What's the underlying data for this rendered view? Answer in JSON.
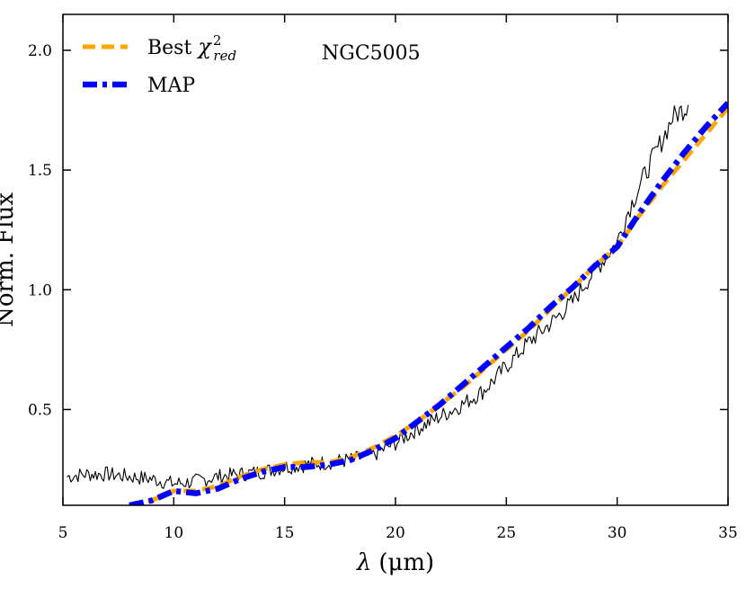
{
  "chart_data": {
    "type": "line",
    "title": "",
    "annotation": "NGC5005",
    "xlabel_symbol": "λ",
    "xlabel_unit": "(μm)",
    "ylabel": "Norm. Flux",
    "xlim": [
      5,
      35
    ],
    "ylim": [
      0.1,
      2.15
    ],
    "x_ticks": [
      5,
      10,
      15,
      20,
      25,
      30,
      35
    ],
    "x_tick_labels": [
      "5",
      "10",
      "15",
      "20",
      "25",
      "30",
      "35"
    ],
    "y_ticks": [
      0.5,
      1.0,
      1.5,
      2.0
    ],
    "y_tick_labels": [
      "0.5",
      "1.0",
      "1.5",
      "2.0"
    ],
    "grid": false,
    "legend_position": "top-left",
    "legend": [
      {
        "series": "best_chi2",
        "label": "Best",
        "math_base": "χ",
        "math_sup": "2",
        "math_sub": "red"
      },
      {
        "series": "map",
        "label": "MAP"
      }
    ],
    "series": [
      {
        "name": "observed",
        "color": "#000000",
        "style": "solid",
        "noisy": true,
        "x": [
          5.2,
          6,
          7,
          8,
          9,
          10,
          11,
          12,
          13,
          14,
          15,
          16,
          17,
          18,
          19,
          20,
          21,
          22,
          23,
          24,
          25,
          26,
          27,
          28,
          28.5,
          29,
          29.5,
          30,
          30.5,
          31,
          31.5,
          32,
          32.5,
          33.2
        ],
        "y": [
          0.22,
          0.23,
          0.23,
          0.22,
          0.21,
          0.19,
          0.2,
          0.22,
          0.23,
          0.24,
          0.26,
          0.27,
          0.28,
          0.29,
          0.31,
          0.36,
          0.42,
          0.47,
          0.52,
          0.58,
          0.68,
          0.78,
          0.86,
          0.95,
          1.02,
          1.08,
          1.14,
          1.2,
          1.33,
          1.43,
          1.53,
          1.62,
          1.72,
          1.77
        ]
      },
      {
        "name": "best_chi2",
        "label": "Best χ²_red",
        "color": "#FFA500",
        "style": "dashed",
        "x": [
          8,
          9,
          10,
          11,
          12,
          13,
          14,
          15,
          16,
          17,
          18,
          19,
          20,
          21,
          22,
          23,
          24,
          25,
          26,
          27,
          28,
          29,
          30,
          31,
          32,
          33,
          34,
          35
        ],
        "y": [
          0.1,
          0.12,
          0.16,
          0.16,
          0.18,
          0.22,
          0.25,
          0.27,
          0.28,
          0.28,
          0.3,
          0.34,
          0.39,
          0.45,
          0.52,
          0.59,
          0.67,
          0.75,
          0.83,
          0.92,
          1.01,
          1.1,
          1.18,
          1.31,
          1.43,
          1.54,
          1.65,
          1.76
        ]
      },
      {
        "name": "map",
        "label": "MAP",
        "color": "#0000FF",
        "style": "dashdot",
        "x": [
          8,
          9,
          10,
          11,
          12,
          13,
          14,
          15,
          16,
          17,
          18,
          19,
          20,
          21,
          22,
          23,
          24,
          25,
          26,
          27,
          28,
          29,
          30,
          31,
          32,
          33,
          34,
          35
        ],
        "y": [
          0.1,
          0.12,
          0.16,
          0.15,
          0.17,
          0.21,
          0.24,
          0.26,
          0.26,
          0.27,
          0.29,
          0.33,
          0.38,
          0.45,
          0.52,
          0.6,
          0.68,
          0.76,
          0.84,
          0.93,
          1.01,
          1.1,
          1.18,
          1.32,
          1.45,
          1.57,
          1.68,
          1.78
        ]
      }
    ]
  }
}
